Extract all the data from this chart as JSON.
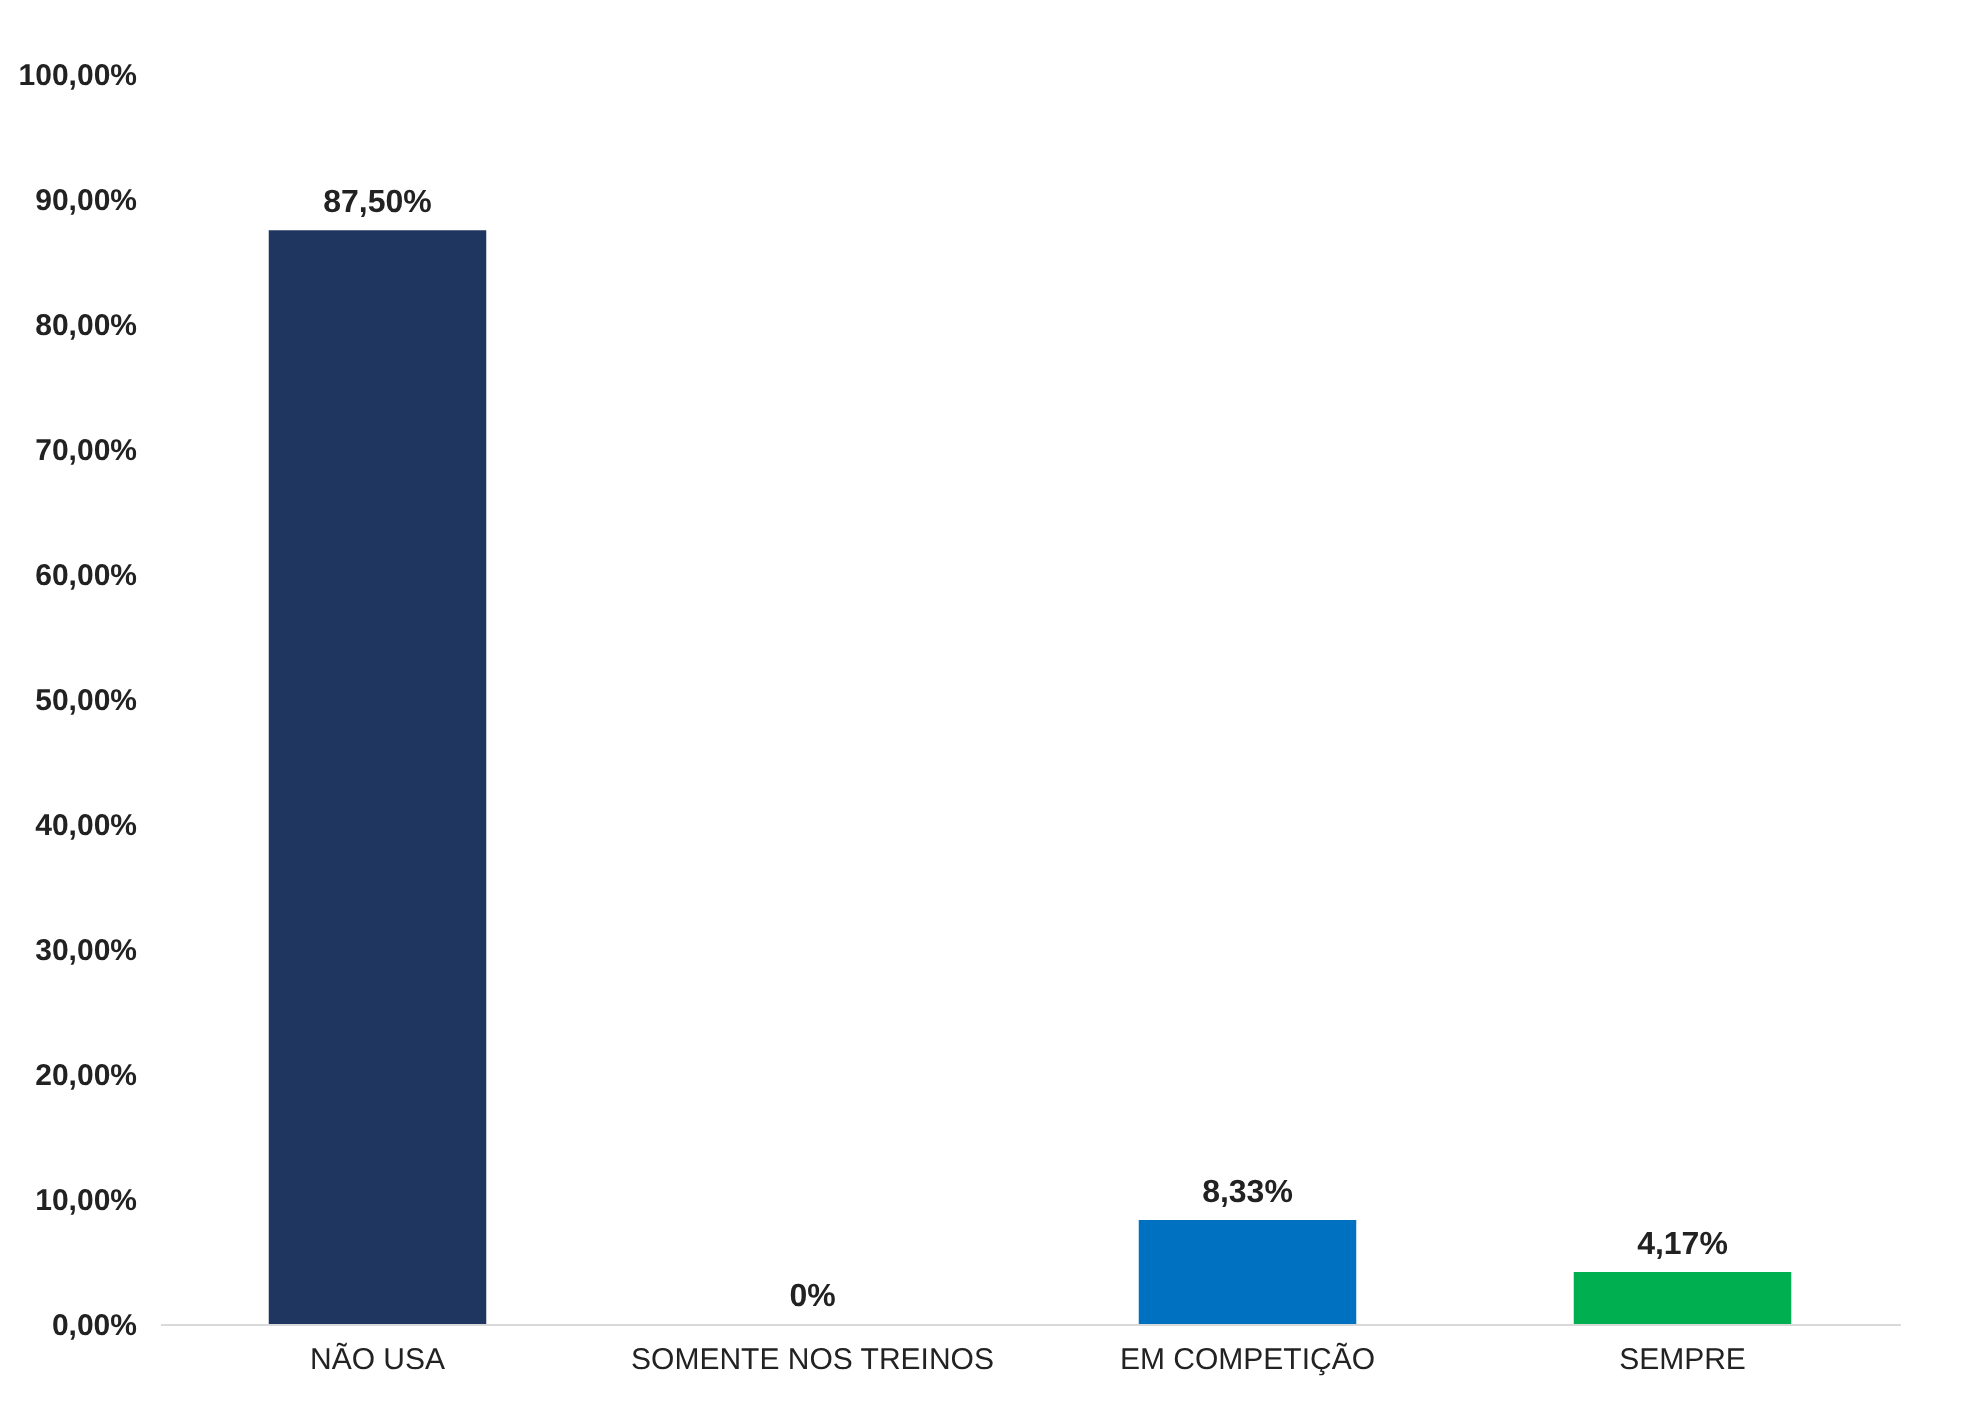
{
  "chart_data": {
    "type": "bar",
    "categories": [
      "NÃO USA",
      "SOMENTE NOS TREINOS",
      "EM COMPETIÇÃO",
      "SEMPRE"
    ],
    "values": [
      87.5,
      0,
      8.33,
      4.17
    ],
    "colors": [
      "#1f3660",
      "#1f3660",
      "#0070c0",
      "#00b050"
    ],
    "value_labels": [
      "87,50%",
      "0%",
      "8,33%",
      "4,17%"
    ],
    "ylim": [
      0,
      100
    ],
    "yticks": [
      {
        "value": 0,
        "label": "0,00%"
      },
      {
        "value": 10,
        "label": "10,00%"
      },
      {
        "value": 20,
        "label": "20,00%"
      },
      {
        "value": 30,
        "label": "30,00%"
      },
      {
        "value": 40,
        "label": "40,00%"
      },
      {
        "value": 50,
        "label": "50,00%"
      },
      {
        "value": 60,
        "label": "60,00%"
      },
      {
        "value": 70,
        "label": "70,00%"
      },
      {
        "value": 80,
        "label": "80,00%"
      },
      {
        "value": 90,
        "label": "90,00%"
      },
      {
        "value": 100,
        "label": "100,00%"
      }
    ],
    "grid": false
  }
}
